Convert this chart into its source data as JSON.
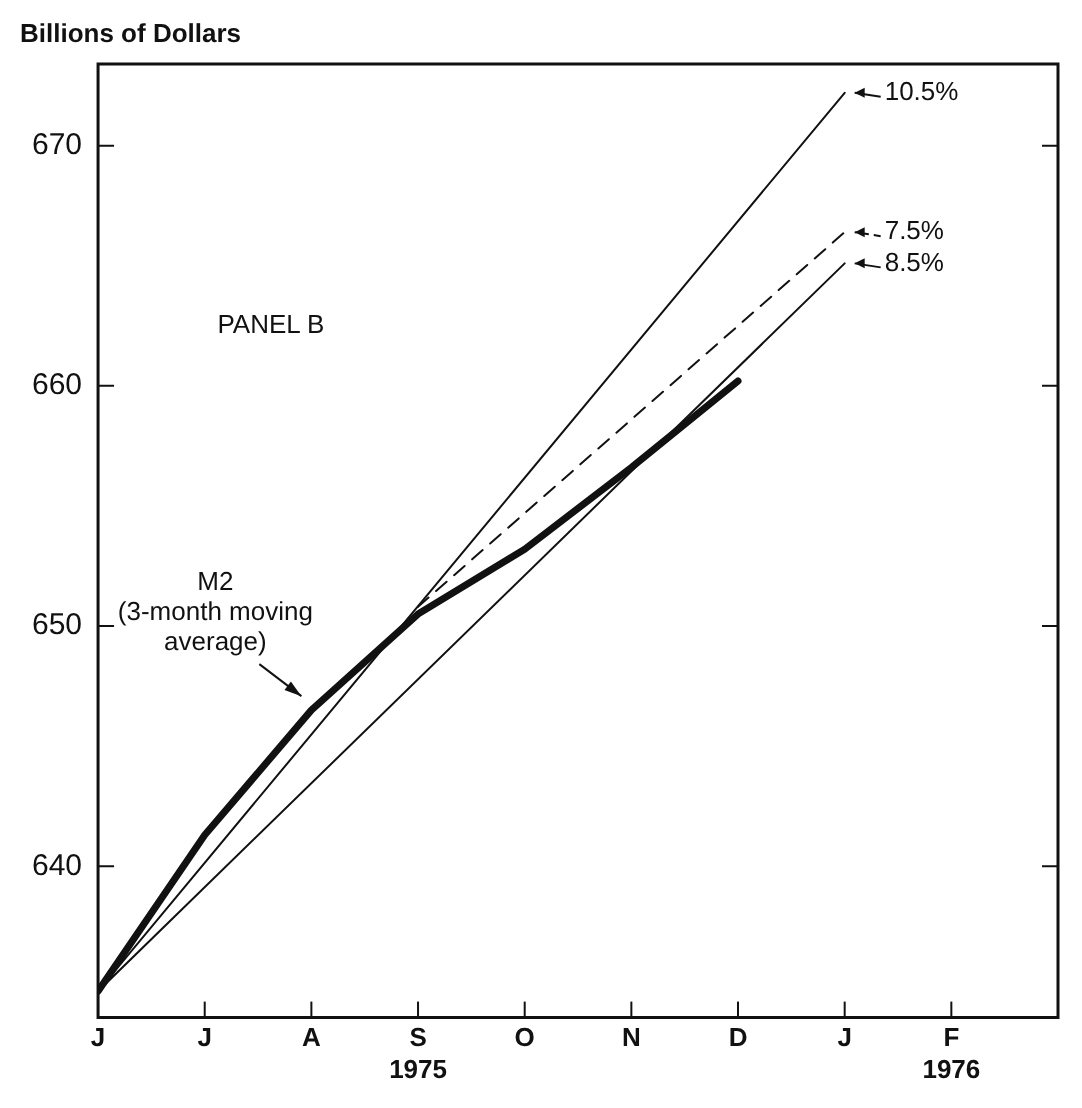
{
  "chart_data": {
    "type": "line",
    "ylabel": "Billions of Dollars",
    "xlim": [
      "1975-06",
      "1976-03"
    ],
    "ylim": [
      633.7,
      673.4
    ],
    "xticks": [
      {
        "value": "1975-06",
        "label": "J"
      },
      {
        "value": "1975-07",
        "label": "J"
      },
      {
        "value": "1975-08",
        "label": "A"
      },
      {
        "value": "1975-09",
        "label": "S\n1975"
      },
      {
        "value": "1975-10",
        "label": "O"
      },
      {
        "value": "1975-11",
        "label": "N"
      },
      {
        "value": "1975-12",
        "label": "D"
      },
      {
        "value": "1976-01",
        "label": "J"
      },
      {
        "value": "1976-02",
        "label": "F\n1976"
      }
    ],
    "yticks": [
      640,
      650,
      660,
      670
    ],
    "grid": false,
    "legend": "top right",
    "marker": "none",
    "annotations": [
      "PANEL B"
    ],
    "series": [
      {
        "name": "M2\n(3-month moving\naverage)",
        "color": "#111111",
        "x": [
          "1975-06",
          "1975-07",
          "1975-08",
          "1975-09",
          "1975-10",
          "1975-11",
          "1975-12"
        ],
        "values": [
          634.8,
          641.3,
          646.5,
          650.5,
          653.2,
          656.6,
          660.2
        ],
        "line_style": "solid"
      },
      {
        "name": "10.5%",
        "color": "#111111",
        "x": [
          "1975-06",
          "1976-01"
        ],
        "values": [
          634.8,
          672.2
        ],
        "line_style": "solid"
      },
      {
        "name": "7.5%",
        "color": "#111111",
        "x": [
          "1975-09",
          "1976-01"
        ],
        "values": [
          650.8,
          666.4
        ],
        "line_style": "dashed"
      },
      {
        "name": "8.5%",
        "color": "#111111",
        "x": [
          "1975-06",
          "1976-01"
        ],
        "values": [
          634.8,
          665.1
        ],
        "line_style": "solid"
      }
    ]
  }
}
